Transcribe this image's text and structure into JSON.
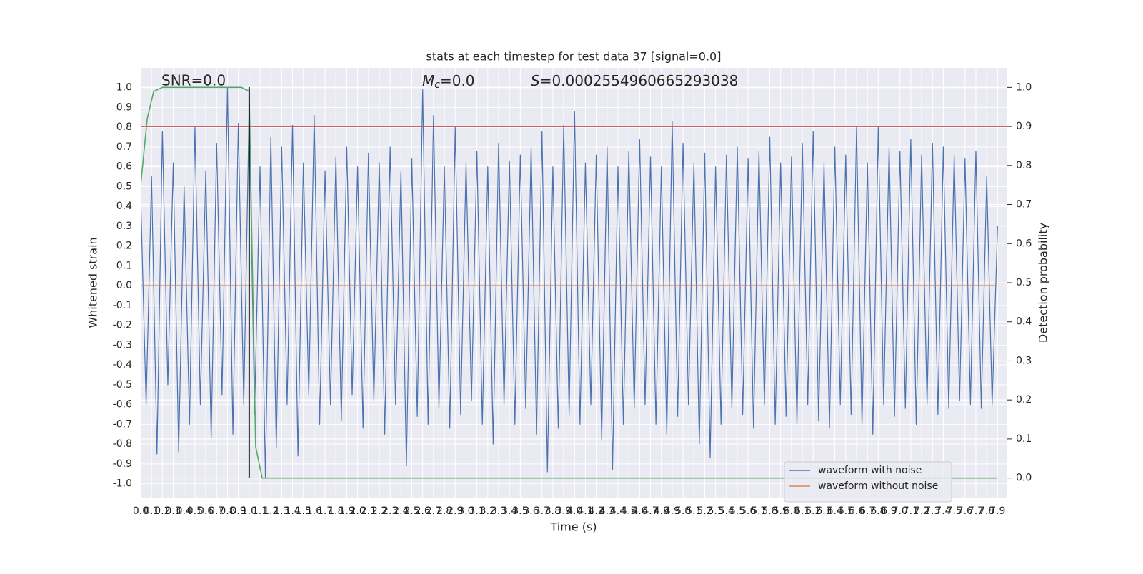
{
  "chart_data": {
    "type": "line",
    "title": "stats at each timestep for test data 37 [signal=0.0]",
    "xlabel": "Time (s)",
    "ylabel": "Whitened strain",
    "y2label": "Detection probability",
    "annotations": [
      {
        "text": "SNR=0.0"
      },
      {
        "symbol": "M",
        "subscript": "c",
        "text": "=0.0"
      },
      {
        "symbol": "S",
        "text": "=0.0002554960665293038"
      }
    ],
    "xlim": [
      0,
      7.99
    ],
    "ylim": [
      -1.07,
      1.1
    ],
    "y2lim": [
      -0.05,
      1.05
    ],
    "grid": true,
    "legend": "lower right",
    "xticks": [
      {
        "value": 0,
        "label": "0.0"
      },
      0.1,
      0.2,
      0.3,
      0.4,
      0.5,
      0.6,
      0.7,
      0.8,
      0.9,
      {
        "value": 1,
        "label": "1.0"
      },
      1.1,
      1.2,
      1.3,
      1.4,
      1.5,
      1.6,
      1.7,
      1.8,
      1.9,
      {
        "value": 2,
        "label": "2.0"
      },
      2.1,
      2.2,
      2.3,
      2.4,
      2.5,
      2.6,
      2.7,
      2.8,
      2.9,
      {
        "value": 3,
        "label": "3.0"
      },
      3.1,
      3.2,
      3.3,
      3.4,
      3.5,
      3.6,
      3.7,
      3.8,
      3.9,
      {
        "value": 4,
        "label": "4.0"
      },
      4.1,
      4.2,
      4.3,
      4.4,
      4.5,
      4.6,
      4.7,
      4.8,
      4.9,
      {
        "value": 5,
        "label": "5.0"
      },
      5.1,
      5.2,
      5.3,
      5.4,
      5.5,
      5.6,
      5.7,
      5.8,
      5.9,
      {
        "value": 6,
        "label": "6.0"
      },
      6.1,
      6.2,
      6.3,
      6.4,
      6.5,
      6.6,
      6.7,
      6.8,
      6.9,
      {
        "value": 7,
        "label": "7.0"
      },
      7.1,
      7.2,
      7.3,
      7.4,
      7.5,
      7.6,
      7.7,
      7.8,
      7.9
    ],
    "yticks": [
      {
        "value": -1,
        "label": "-1.0"
      },
      -0.9,
      -0.8,
      -0.7,
      -0.6,
      -0.5,
      -0.4,
      -0.3,
      -0.2,
      -0.1,
      {
        "value": 0,
        "label": "0.0"
      },
      0.1,
      0.2,
      0.3,
      0.4,
      0.5,
      0.6,
      0.7,
      0.8,
      0.9,
      {
        "value": 1,
        "label": "1.0"
      }
    ],
    "y2ticks": [
      {
        "value": 0,
        "label": "0.0"
      },
      0.1,
      0.2,
      0.3,
      0.4,
      0.5,
      0.6,
      0.7,
      0.8,
      0.9,
      {
        "value": 1,
        "label": "1.0"
      }
    ],
    "series": [
      {
        "name": "waveform with noise",
        "color": "#4c72b0",
        "axis": "y",
        "x": [
          0,
          0.05,
          0.1,
          0.15,
          0.2,
          0.25,
          0.3,
          0.35,
          0.4,
          0.45,
          0.5,
          0.55,
          0.6,
          0.65,
          0.7,
          0.75,
          0.8,
          0.85,
          0.9,
          0.95,
          1,
          1.05,
          1.1,
          1.15,
          1.2,
          1.25,
          1.3,
          1.35,
          1.4,
          1.45,
          1.5,
          1.55,
          1.6,
          1.65,
          1.7,
          1.75,
          1.8,
          1.85,
          1.9,
          1.95,
          2,
          2.05,
          2.1,
          2.15,
          2.2,
          2.25,
          2.3,
          2.35,
          2.4,
          2.45,
          2.5,
          2.55,
          2.6,
          2.65,
          2.7,
          2.75,
          2.8,
          2.85,
          2.9,
          2.95,
          3,
          3.05,
          3.1,
          3.15,
          3.2,
          3.25,
          3.3,
          3.35,
          3.4,
          3.45,
          3.5,
          3.55,
          3.6,
          3.65,
          3.7,
          3.75,
          3.8,
          3.85,
          3.9,
          3.95,
          4,
          4.05,
          4.1,
          4.15,
          4.2,
          4.25,
          4.3,
          4.35,
          4.4,
          4.45,
          4.5,
          4.55,
          4.6,
          4.65,
          4.7,
          4.75,
          4.8,
          4.85,
          4.9,
          4.95,
          5,
          5.05,
          5.1,
          5.15,
          5.2,
          5.25,
          5.3,
          5.35,
          5.4,
          5.45,
          5.5,
          5.55,
          5.6,
          5.65,
          5.7,
          5.75,
          5.8,
          5.85,
          5.9,
          5.95,
          6,
          6.05,
          6.1,
          6.15,
          6.2,
          6.25,
          6.3,
          6.35,
          6.4,
          6.45,
          6.5,
          6.55,
          6.6,
          6.65,
          6.7,
          6.75,
          6.8,
          6.85,
          6.9,
          6.95,
          7,
          7.05,
          7.1,
          7.15,
          7.2,
          7.25,
          7.3,
          7.35,
          7.4,
          7.45,
          7.5,
          7.55,
          7.6,
          7.65,
          7.7,
          7.75,
          7.8,
          7.85,
          7.9
        ],
        "values": [
          0.45,
          -0.6,
          0.55,
          -0.85,
          0.78,
          -0.5,
          0.62,
          -0.84,
          0.5,
          -0.7,
          0.8,
          -0.6,
          0.58,
          -0.77,
          0.72,
          -0.55,
          1.0,
          -0.75,
          0.82,
          -0.6,
          0.9,
          -0.65,
          0.6,
          -0.97,
          0.75,
          -0.82,
          0.7,
          -0.6,
          0.81,
          -0.86,
          0.62,
          -0.55,
          0.86,
          -0.7,
          0.58,
          -0.6,
          0.65,
          -0.68,
          0.7,
          -0.55,
          0.6,
          -0.72,
          0.67,
          -0.58,
          0.62,
          -0.75,
          0.7,
          -0.6,
          0.58,
          -0.91,
          0.64,
          -0.66,
          0.99,
          -0.7,
          0.86,
          -0.62,
          0.6,
          -0.72,
          0.8,
          -0.65,
          0.62,
          -0.58,
          0.68,
          -0.7,
          0.6,
          -0.8,
          0.72,
          -0.6,
          0.63,
          -0.7,
          0.66,
          -0.62,
          0.7,
          -0.75,
          0.78,
          -0.94,
          0.6,
          -0.72,
          0.81,
          -0.65,
          0.88,
          -0.7,
          0.62,
          -0.6,
          0.66,
          -0.78,
          0.7,
          -0.93,
          0.6,
          -0.7,
          0.68,
          -0.62,
          0.74,
          -0.6,
          0.65,
          -0.7,
          0.6,
          -0.75,
          0.83,
          -0.66,
          0.72,
          -0.6,
          0.62,
          -0.8,
          0.67,
          -0.87,
          0.6,
          -0.7,
          0.66,
          -0.62,
          0.7,
          -0.65,
          0.64,
          -0.72,
          0.68,
          -0.6,
          0.75,
          -0.7,
          0.62,
          -0.66,
          0.65,
          -0.7,
          0.72,
          -0.6,
          0.78,
          -0.68,
          0.62,
          -0.72,
          0.7,
          -0.6,
          0.66,
          -0.65,
          0.8,
          -0.7,
          0.62,
          -0.75,
          0.8,
          -0.6,
          0.7,
          -0.66,
          0.68,
          -0.62,
          0.74,
          -0.7,
          0.66,
          -0.6,
          0.72,
          -0.65,
          0.7,
          -0.62,
          0.66,
          -0.58,
          0.64,
          -0.6,
          0.68,
          -0.62,
          0.55,
          -0.6,
          0.3
        ]
      },
      {
        "name": "waveform without noise",
        "color": "#dd8452",
        "axis": "y",
        "x": [
          0,
          7.9
        ],
        "values": [
          0,
          0
        ]
      },
      {
        "color": "#55a868",
        "axis": "y2",
        "x": [
          0,
          0.06,
          0.12,
          0.2,
          0.93,
          1.0,
          1.06,
          1.12,
          7.9
        ],
        "values": [
          0.75,
          0.92,
          0.99,
          1.0,
          1.0,
          0.99,
          0.08,
          0.0,
          0.0
        ]
      }
    ],
    "hline": {
      "value": 0.9,
      "axis": "y2",
      "color": "#c44e52"
    },
    "vline": {
      "x": 1.0,
      "color": "#000000"
    }
  }
}
